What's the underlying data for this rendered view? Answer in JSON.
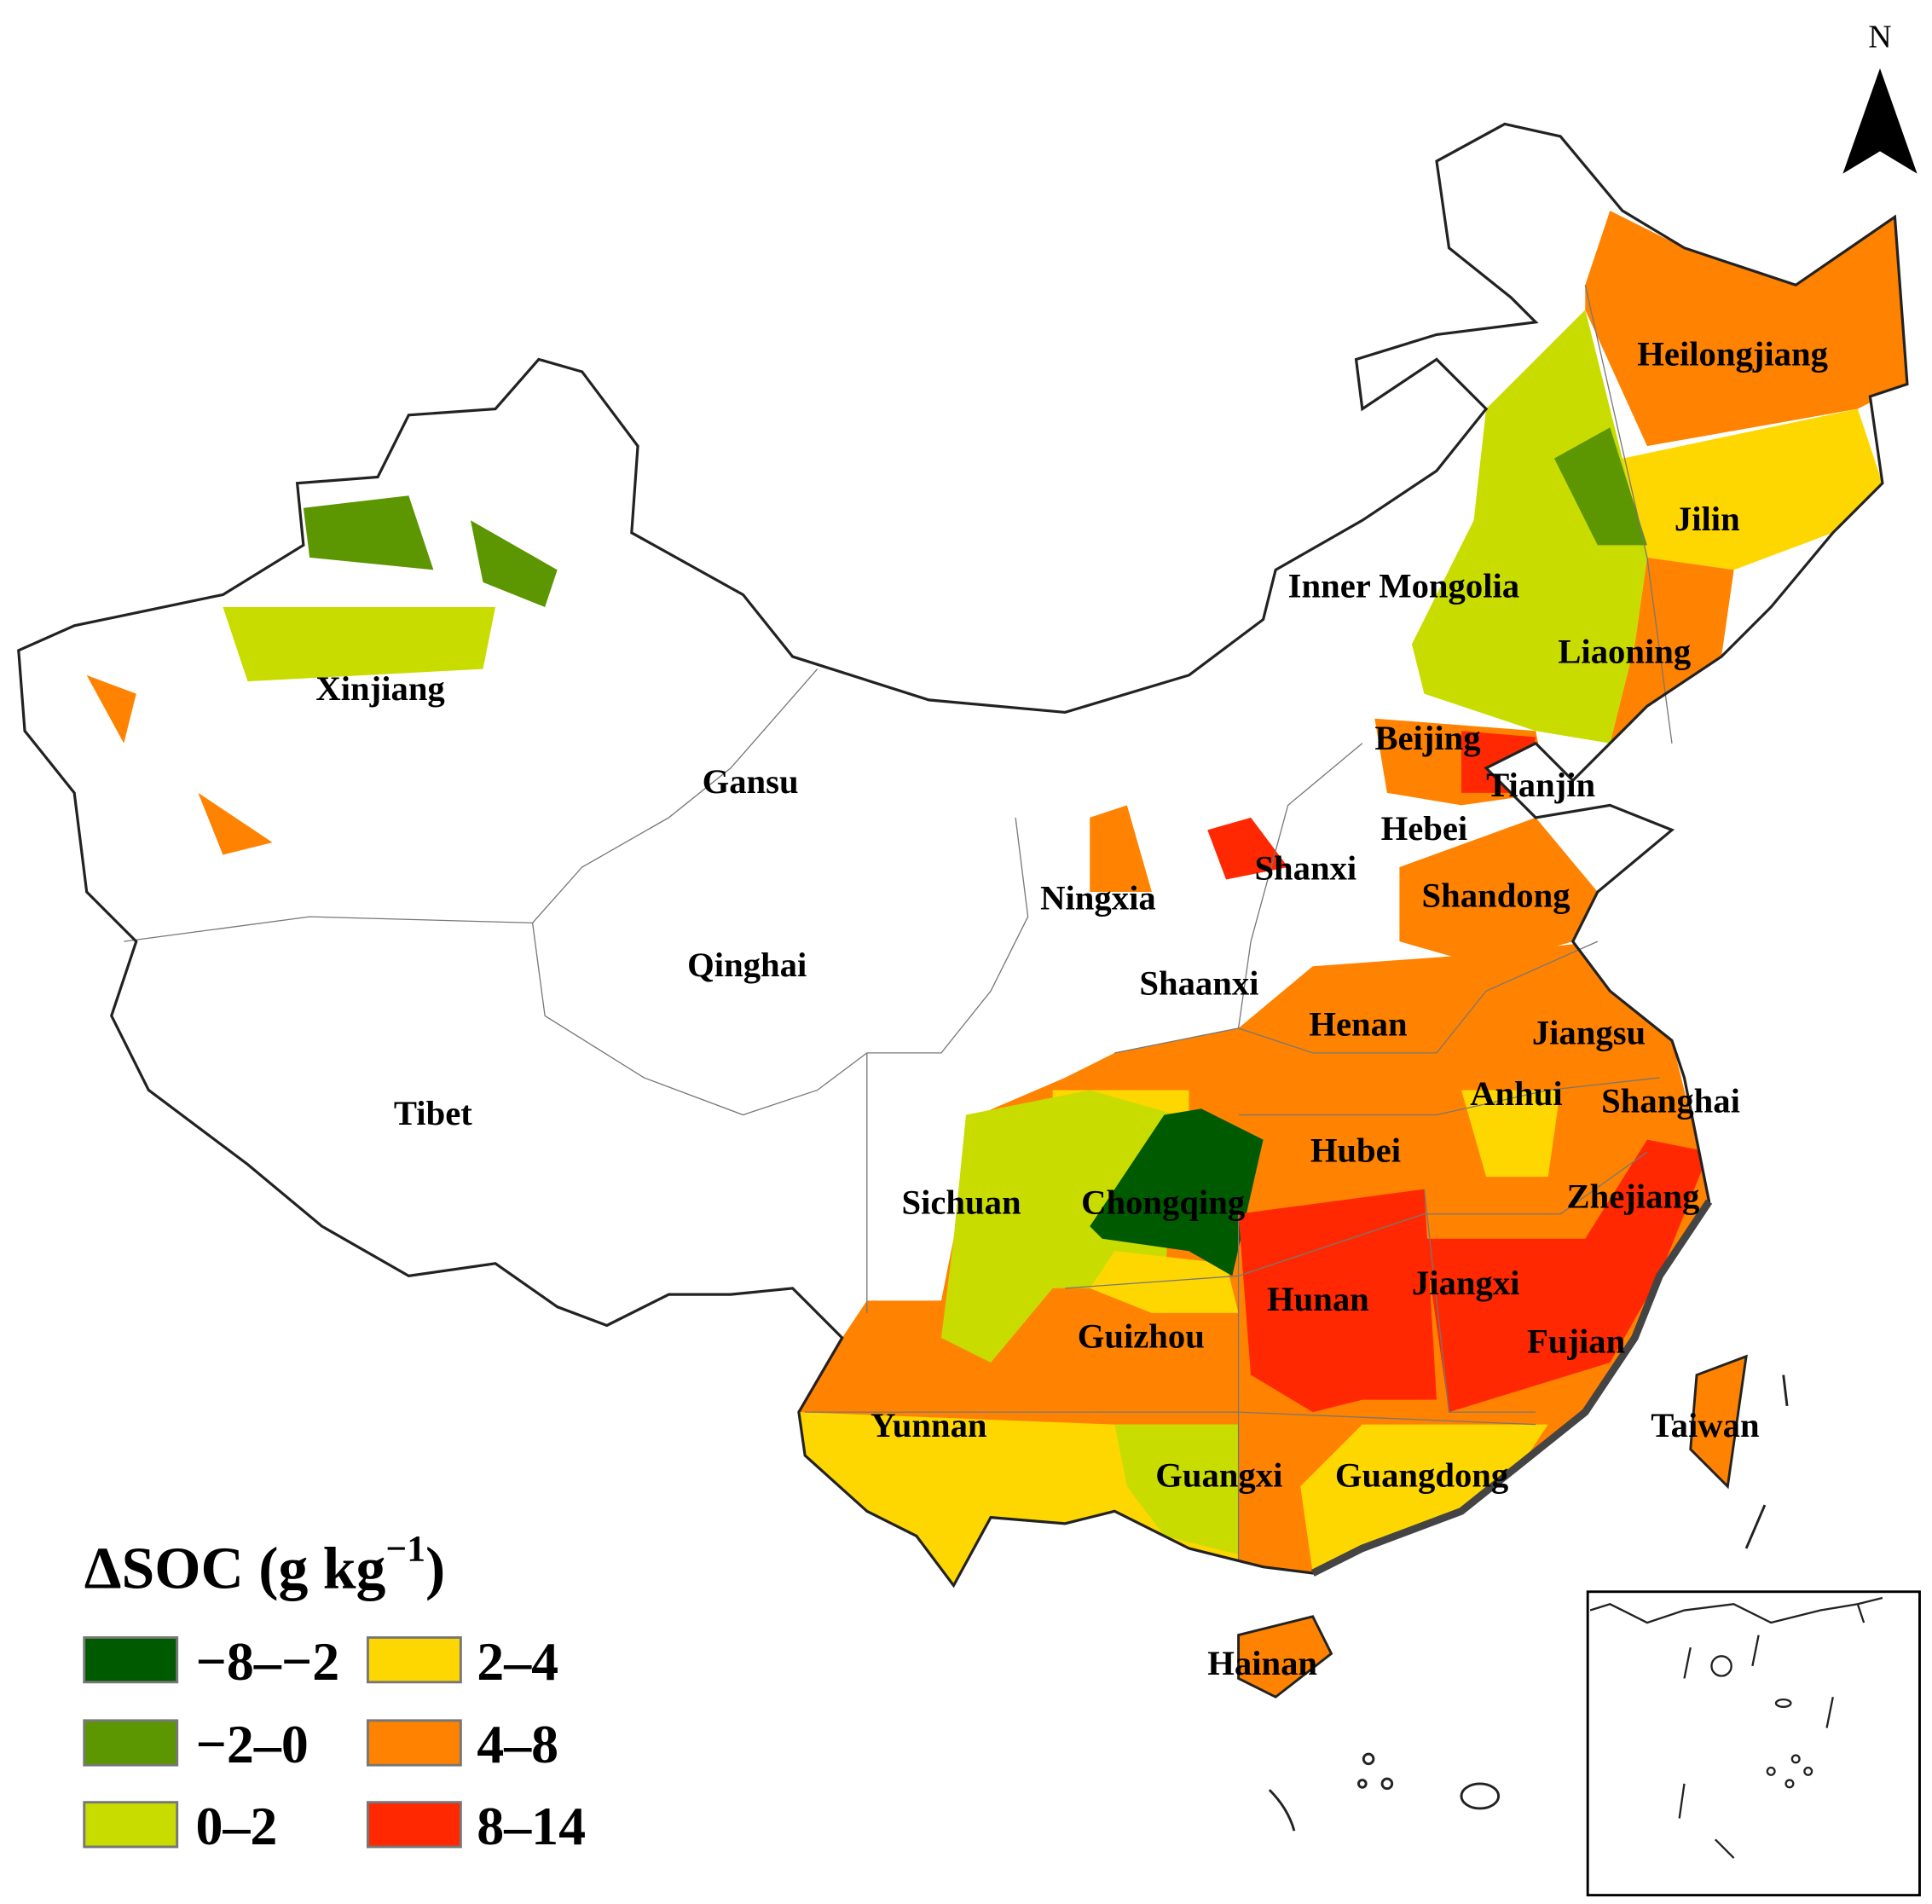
{
  "north_label": "N",
  "legend": {
    "title_main": "ΔSOC (g kg",
    "title_sup": "−1",
    "title_close": ")",
    "items": [
      {
        "label": "−8–−2",
        "color": "#005a00"
      },
      {
        "label": "−2–0",
        "color": "#5c9600"
      },
      {
        "label": "0–2",
        "color": "#c8dc00"
      },
      {
        "label": "2–4",
        "color": "#ffd700"
      },
      {
        "label": "4–8",
        "color": "#ff8200"
      },
      {
        "label": "8–14",
        "color": "#ff2800"
      }
    ]
  },
  "provinces": {
    "heilongjiang": "Heilongjiang",
    "jilin": "Jilin",
    "inner_mongolia": "Inner Mongolia",
    "liaoning": "Liaoning",
    "xinjiang": "Xinjiang",
    "beijing": "Beijing",
    "tianjin": "Tianjin",
    "gansu": "Gansu",
    "hebei": "Hebei",
    "shanxi": "Shanxi",
    "ningxia": "Ningxia",
    "shandong": "Shandong",
    "qinghai": "Qinghai",
    "shaanxi": "Shaanxi",
    "henan": "Henan",
    "jiangsu": "Jiangsu",
    "anhui": "Anhui",
    "shanghai": "Shanghai",
    "tibet": "Tibet",
    "hubei": "Hubei",
    "sichuan": "Sichuan",
    "chongqing": "Chongqing",
    "zhejiang": "Zhejiang",
    "jiangxi": "Jiangxi",
    "hunan": "Hunan",
    "fujian": "Fujian",
    "guizhou": "Guizhou",
    "yunnan": "Yunnan",
    "taiwan": "Taiwan",
    "guangxi": "Guangxi",
    "guangdong": "Guangdong",
    "hainan": "Hainan"
  }
}
